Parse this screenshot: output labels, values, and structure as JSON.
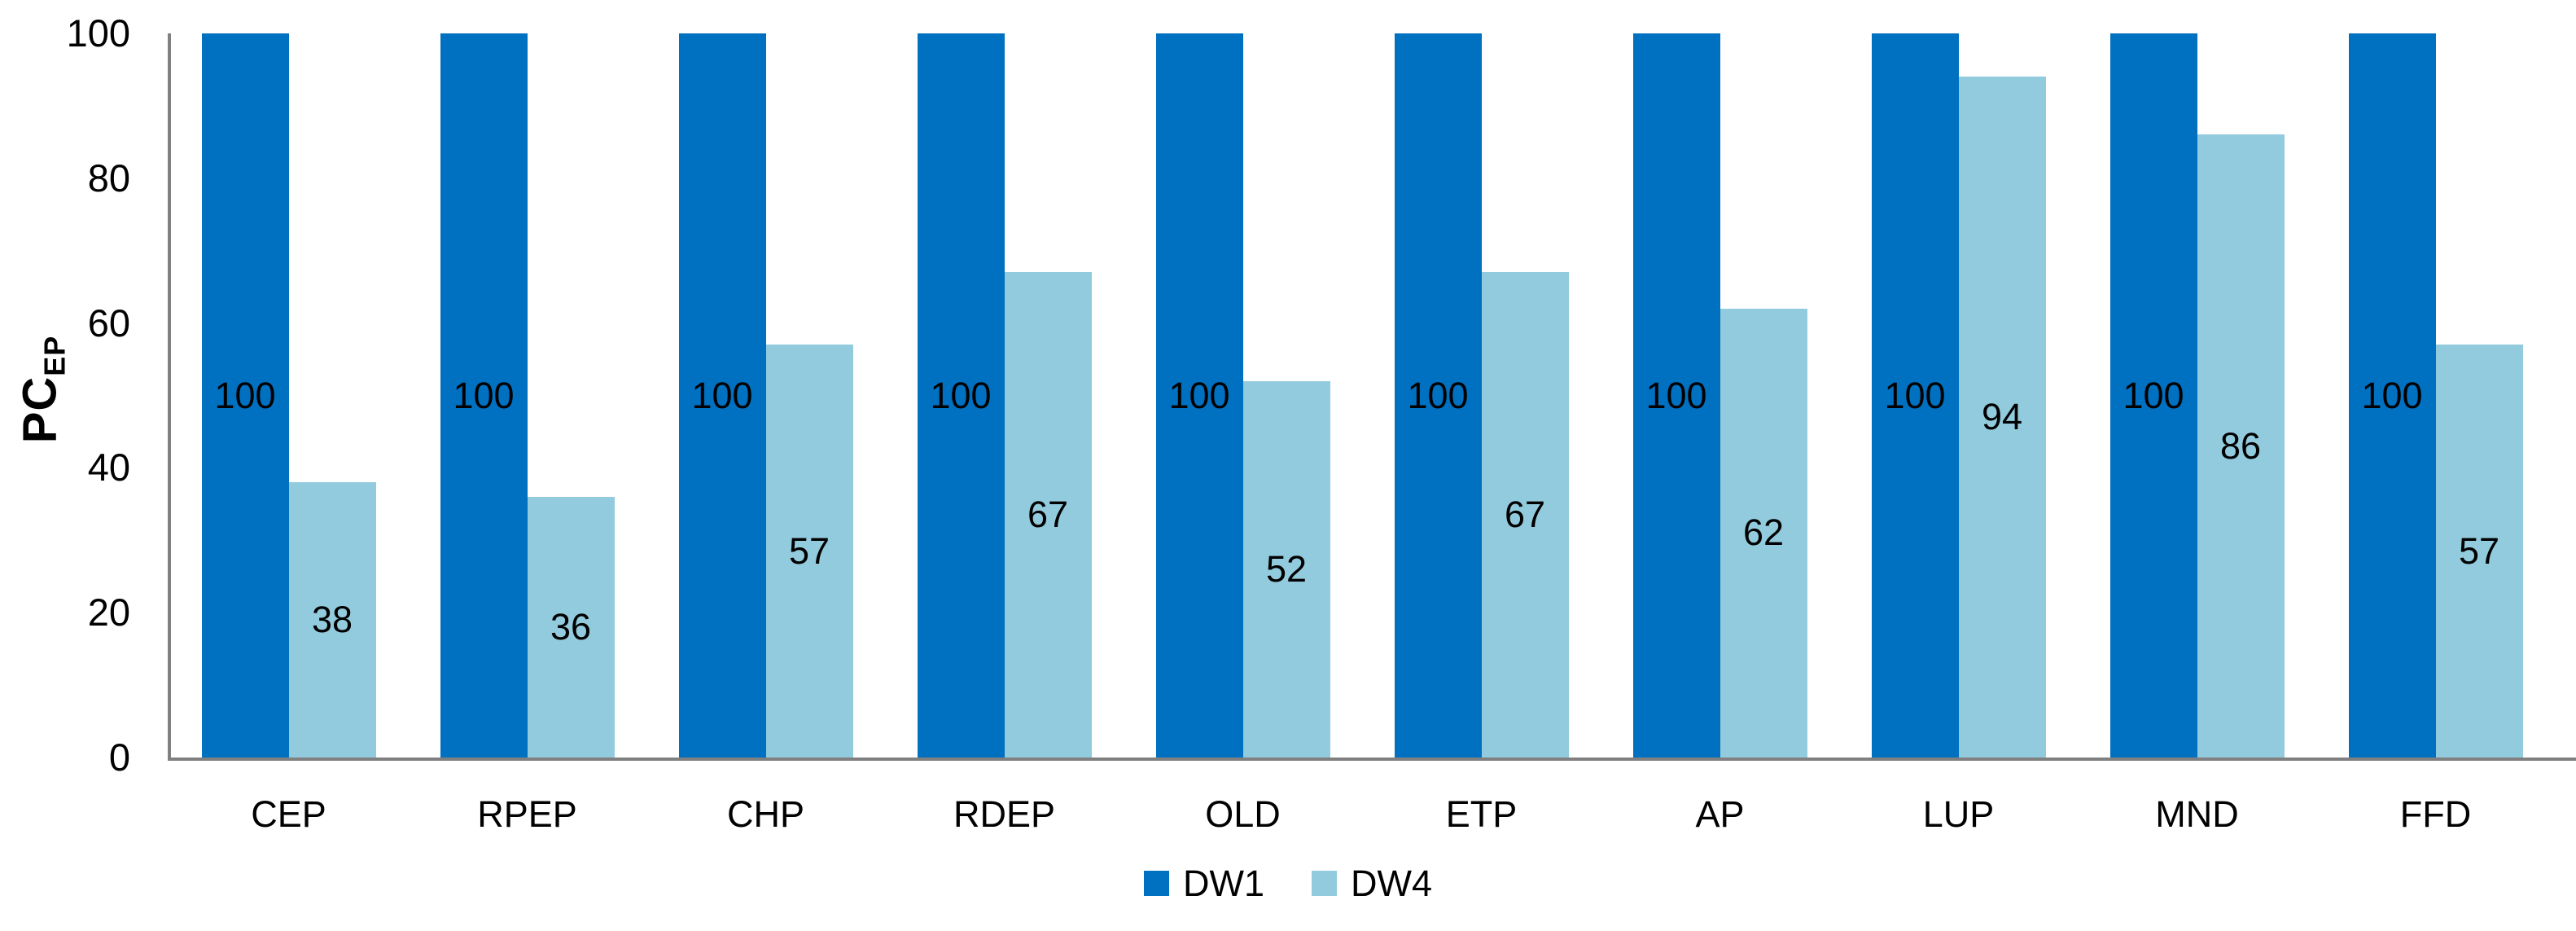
{
  "chart_data": {
    "type": "bar",
    "categories": [
      "CEP",
      "RPEP",
      "CHP",
      "RDEP",
      "OLD",
      "ETP",
      "AP",
      "LUP",
      "MND",
      "FFD"
    ],
    "series": [
      {
        "name": "DW1",
        "color": "#0070C0",
        "values": [
          100,
          100,
          100,
          100,
          100,
          100,
          100,
          100,
          100,
          100
        ]
      },
      {
        "name": "DW4",
        "color": "#92CBDD",
        "values": [
          38,
          36,
          57,
          67,
          52,
          67,
          62,
          94,
          86,
          57
        ]
      }
    ],
    "title": "",
    "xlabel": "",
    "ylabel_main": "PC",
    "ylabel_sub": "EP",
    "yticks": [
      0,
      20,
      40,
      60,
      80,
      100
    ],
    "ylim": [
      0,
      100
    ],
    "grid": false,
    "bar_value_labels": true,
    "bar_label_position": "center",
    "legend_position": "bottom-center"
  },
  "colors": {
    "axis_line": "#808080",
    "text": "#000000",
    "background": "#FFFFFF"
  }
}
